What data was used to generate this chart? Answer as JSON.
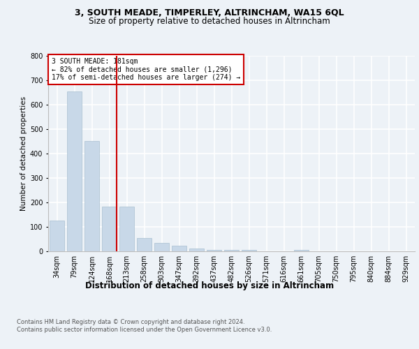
{
  "title": "3, SOUTH MEADE, TIMPERLEY, ALTRINCHAM, WA15 6QL",
  "subtitle": "Size of property relative to detached houses in Altrincham",
  "xlabel": "Distribution of detached houses by size in Altrincham",
  "ylabel": "Number of detached properties",
  "categories": [
    "34sqm",
    "79sqm",
    "124sqm",
    "168sqm",
    "213sqm",
    "258sqm",
    "303sqm",
    "347sqm",
    "392sqm",
    "437sqm",
    "482sqm",
    "526sqm",
    "571sqm",
    "616sqm",
    "661sqm",
    "705sqm",
    "750sqm",
    "795sqm",
    "840sqm",
    "884sqm",
    "929sqm"
  ],
  "values": [
    125,
    655,
    450,
    182,
    182,
    55,
    35,
    22,
    12,
    7,
    6,
    5,
    0,
    0,
    5,
    0,
    0,
    0,
    0,
    0,
    0
  ],
  "bar_color": "#c8d8e8",
  "bar_edge_color": "#a8c0d0",
  "highlight_line_color": "#cc0000",
  "highlight_index": 3,
  "annotation_text": "3 SOUTH MEADE: 181sqm\n← 82% of detached houses are smaller (1,296)\n17% of semi-detached houses are larger (274) →",
  "annotation_box_color": "#ffffff",
  "annotation_box_edge": "#cc0000",
  "ylim": [
    0,
    800
  ],
  "yticks": [
    0,
    100,
    200,
    300,
    400,
    500,
    600,
    700,
    800
  ],
  "footer": "Contains HM Land Registry data © Crown copyright and database right 2024.\nContains public sector information licensed under the Open Government Licence v3.0.",
  "bg_color": "#edf2f7",
  "plot_bg_color": "#edf2f7",
  "grid_color": "#ffffff",
  "title_fontsize": 9,
  "subtitle_fontsize": 8.5,
  "ylabel_fontsize": 7.5,
  "xlabel_fontsize": 8.5,
  "tick_fontsize": 7,
  "annotation_fontsize": 7,
  "footer_fontsize": 6
}
